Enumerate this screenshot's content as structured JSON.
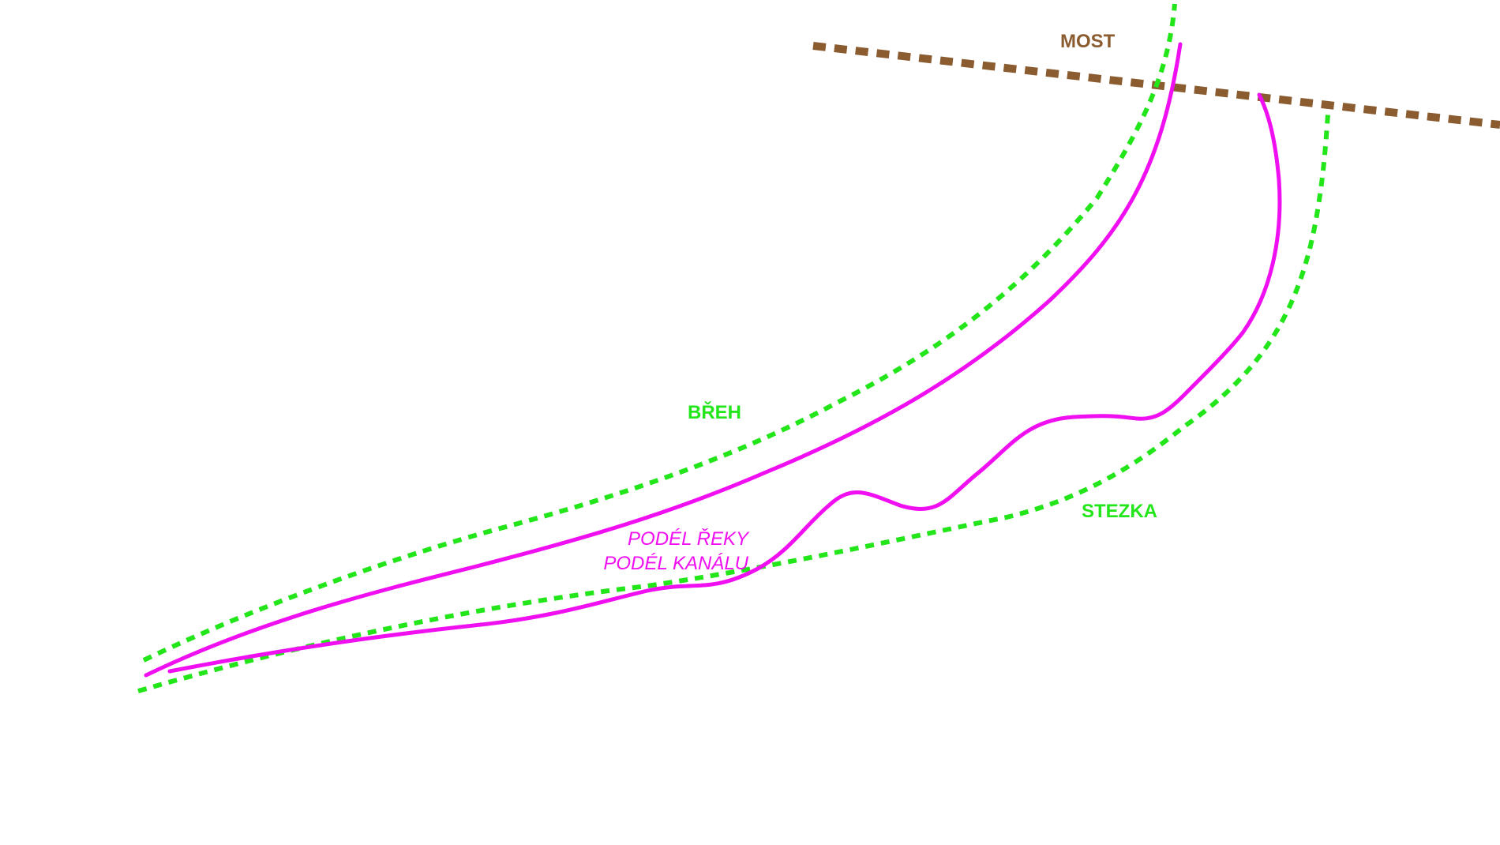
{
  "colors": {
    "bridge": "#8a5c30",
    "bank": "#22e61a",
    "route": "#f00ff0",
    "background": "#ffffff"
  },
  "labels": {
    "bridge": "MOST",
    "bank": "BŘEH",
    "path": "STEZKA",
    "route_line_1": "PODÉL ŘEKY",
    "route_line_2": "PODÉL KANÁLU"
  }
}
